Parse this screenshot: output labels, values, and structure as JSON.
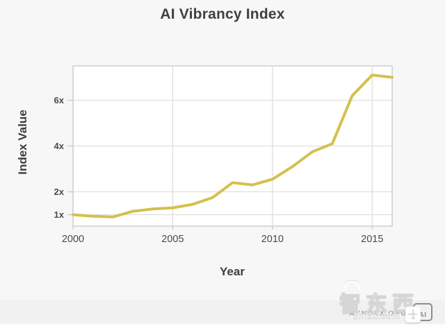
{
  "chart_data": {
    "type": "line",
    "title": "AI Vibrancy Index",
    "xlabel": "Year",
    "ylabel": "Index Value",
    "x": [
      2000,
      2001,
      2002,
      2003,
      2004,
      2005,
      2006,
      2007,
      2008,
      2009,
      2010,
      2011,
      2012,
      2013,
      2014,
      2015,
      2016
    ],
    "values": [
      1.0,
      0.93,
      0.9,
      1.15,
      1.25,
      1.3,
      1.45,
      1.75,
      2.4,
      2.3,
      2.55,
      3.1,
      3.75,
      4.1,
      6.2,
      7.1,
      7.0
    ],
    "xticks": [
      2000,
      2005,
      2010,
      2015
    ],
    "yticks": [
      {
        "value": 1,
        "label": "1x"
      },
      {
        "value": 2,
        "label": "2x"
      },
      {
        "value": 4,
        "label": "4x"
      },
      {
        "value": 6,
        "label": "6x"
      }
    ],
    "xlim": [
      2000,
      2016
    ],
    "ylim": [
      0.5,
      7.5
    ],
    "grid": true,
    "legend": null,
    "line_color": "#d4c04c"
  },
  "footer": {
    "credit": "AIINDEX.ORG",
    "logo_text": "AI"
  },
  "watermark": {
    "text": "智东西",
    "domain": "zhidx.com"
  },
  "colors": {
    "line": "#d4c04c",
    "background": "#f7f7f7",
    "plot_background": "#ffffff",
    "footer_background": "#f1f1f1",
    "gridline": "#dedede",
    "title_text": "#3e4145",
    "tick_text": "#4a4a4a",
    "credit_text": "#a9a9a9"
  }
}
